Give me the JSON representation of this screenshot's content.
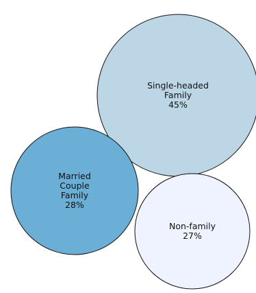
{
  "chart_data": {
    "type": "bubble",
    "title": "",
    "series": [
      {
        "name": "",
        "items": [
          {
            "label_lines": [
              "Single-headed",
              "Family"
            ],
            "value_text": "45%",
            "value": 45,
            "color": "#bcd6e6"
          },
          {
            "label_lines": [
              "Married",
              "Couple",
              "Family"
            ],
            "value_text": "28%",
            "value": 28,
            "color": "#6baed6"
          },
          {
            "label_lines": [
              "Non-family"
            ],
            "value_text": "27%",
            "value": 27,
            "color": "#eff3ff"
          }
        ]
      }
    ]
  }
}
